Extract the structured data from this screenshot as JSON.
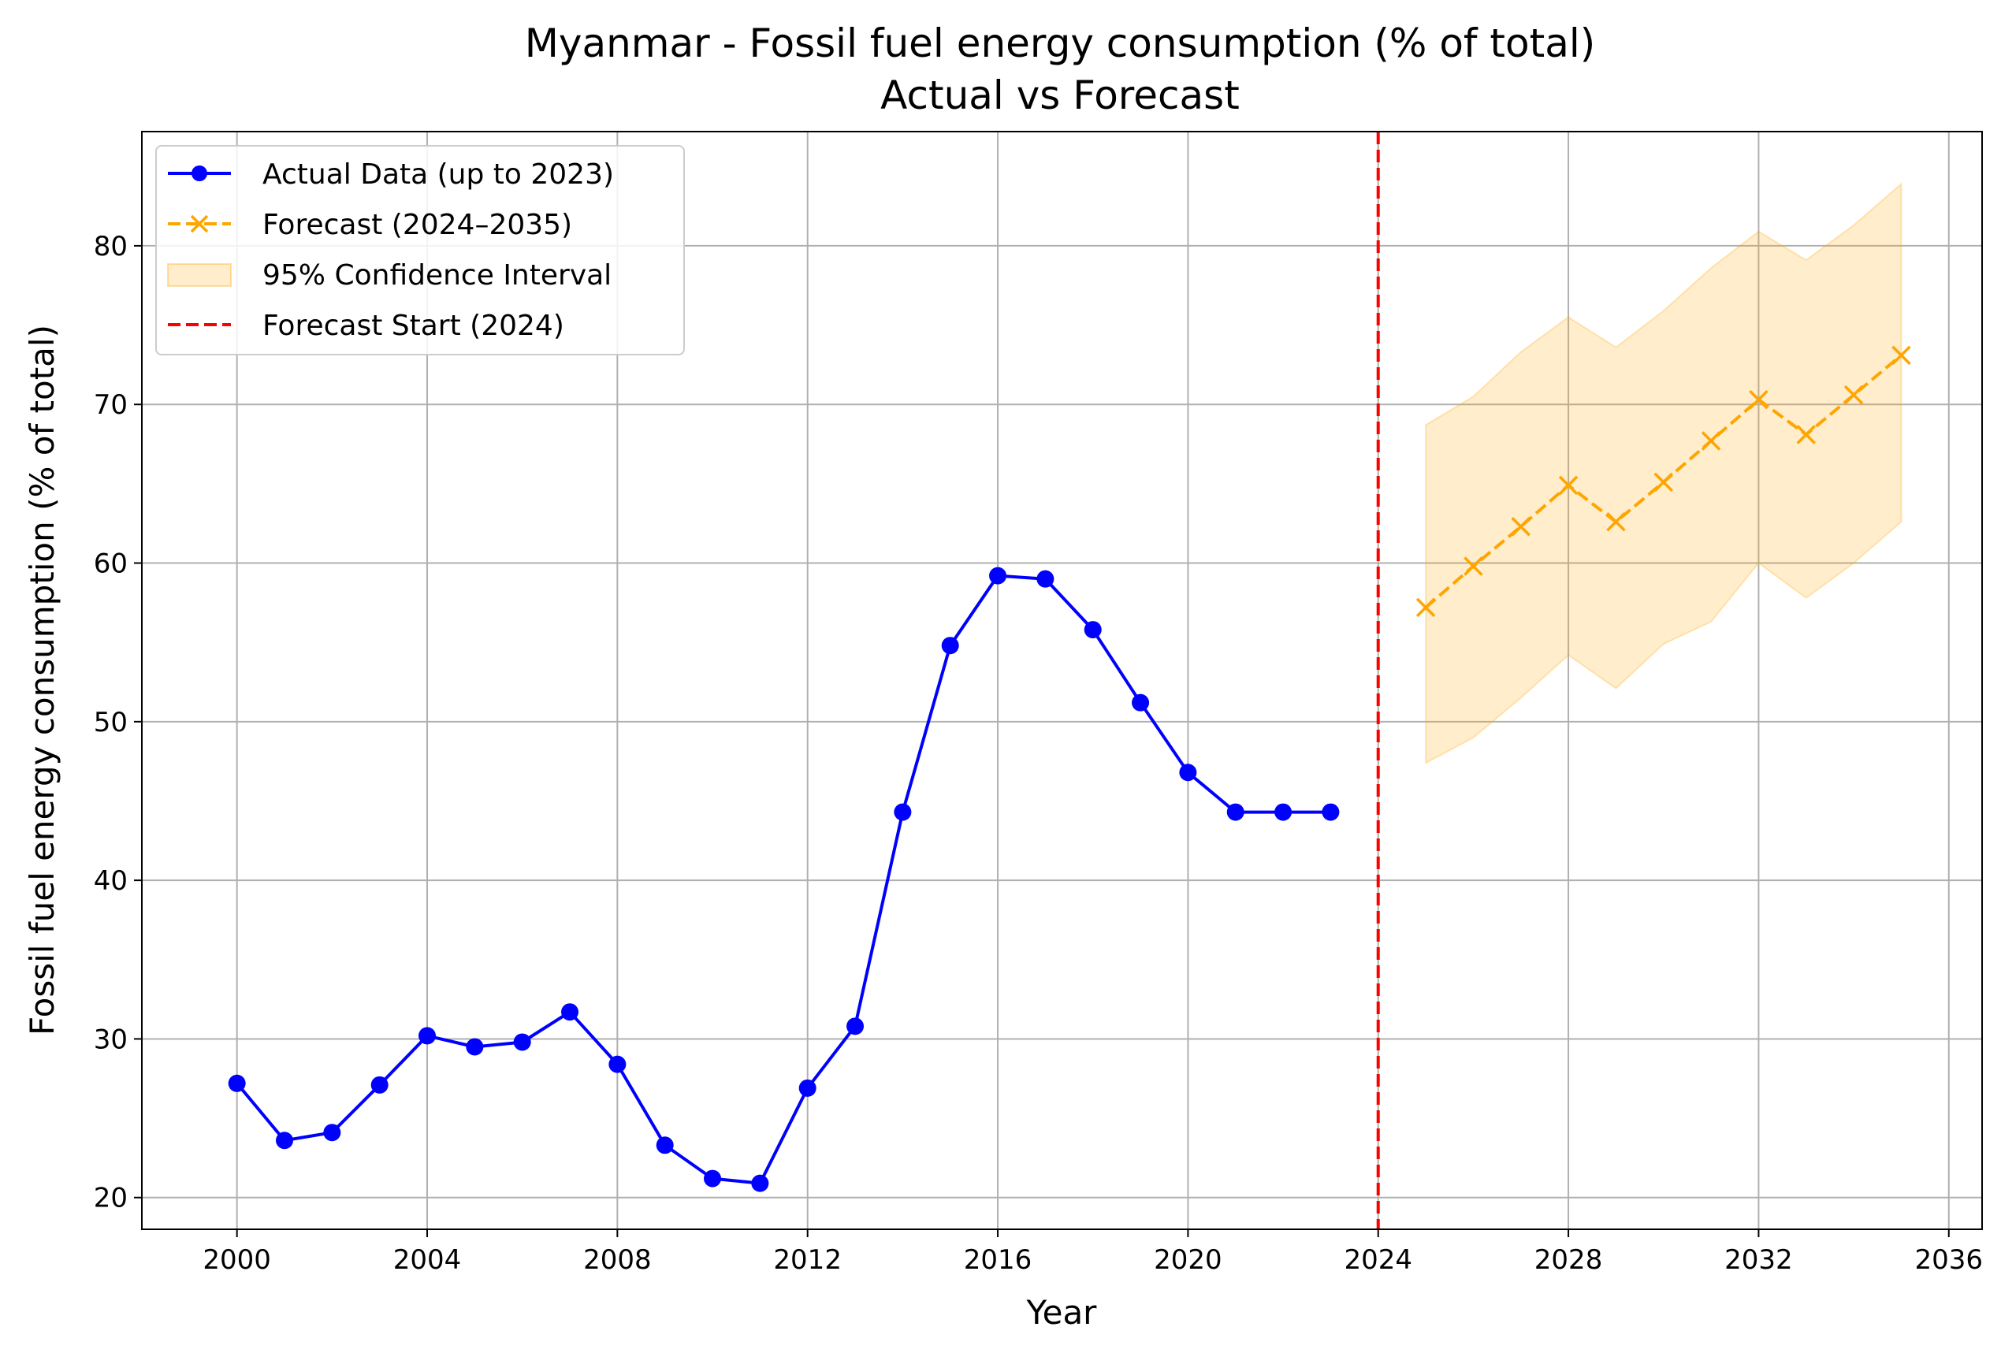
{
  "chart_data": {
    "type": "line",
    "title": "Myanmar - Fossil fuel energy consumption (% of total)",
    "subtitle": "Actual vs Forecast",
    "xlabel": "Year",
    "ylabel": "Fossil fuel energy consumption (% of total)",
    "xlim": [
      1998,
      2036.7
    ],
    "ylim": [
      18,
      87.2
    ],
    "x_ticks": [
      2000,
      2004,
      2008,
      2012,
      2016,
      2020,
      2024,
      2028,
      2032,
      2036
    ],
    "y_ticks": [
      20,
      30,
      40,
      50,
      60,
      70,
      80
    ],
    "grid": true,
    "legend_position": "top-left",
    "series": [
      {
        "name": "Actual Data (up to 2023)",
        "color": "#0000ff",
        "marker": "circle",
        "x": [
          2000,
          2001,
          2002,
          2003,
          2004,
          2005,
          2006,
          2007,
          2008,
          2009,
          2010,
          2011,
          2012,
          2013,
          2014,
          2015,
          2016,
          2017,
          2018,
          2019,
          2020,
          2021,
          2022,
          2023
        ],
        "y": [
          27.2,
          23.6,
          24.1,
          27.1,
          30.2,
          29.5,
          29.8,
          31.7,
          28.4,
          23.3,
          21.2,
          20.9,
          26.9,
          30.8,
          44.3,
          54.8,
          59.2,
          59.0,
          55.8,
          51.2,
          46.8,
          44.3,
          44.3,
          44.3
        ]
      },
      {
        "name": "Forecast (2024–2035)",
        "color": "#ffa500",
        "marker": "x",
        "x": [
          2025,
          2026,
          2027,
          2028,
          2029,
          2030,
          2031,
          2032,
          2033,
          2034,
          2035
        ],
        "y": [
          57.2,
          59.8,
          62.3,
          64.9,
          62.6,
          65.1,
          67.7,
          70.3,
          68.1,
          70.6,
          73.1
        ]
      }
    ],
    "confidence_interval": {
      "name": "95% Confidence Interval",
      "color": "#ffa500",
      "x": [
        2025,
        2026,
        2027,
        2028,
        2029,
        2030,
        2031,
        2032,
        2033,
        2034,
        2035
      ],
      "lower": [
        47.4,
        49.0,
        51.5,
        54.2,
        52.1,
        54.9,
        56.3,
        60.0,
        57.8,
        60.0,
        62.6
      ],
      "upper": [
        68.7,
        70.5,
        73.3,
        75.5,
        73.6,
        75.9,
        78.6,
        80.9,
        79.1,
        81.3,
        83.9
      ]
    },
    "forecast_start": {
      "name": "Forecast Start (2024)",
      "x": 2024,
      "color": "#ff0000"
    }
  }
}
